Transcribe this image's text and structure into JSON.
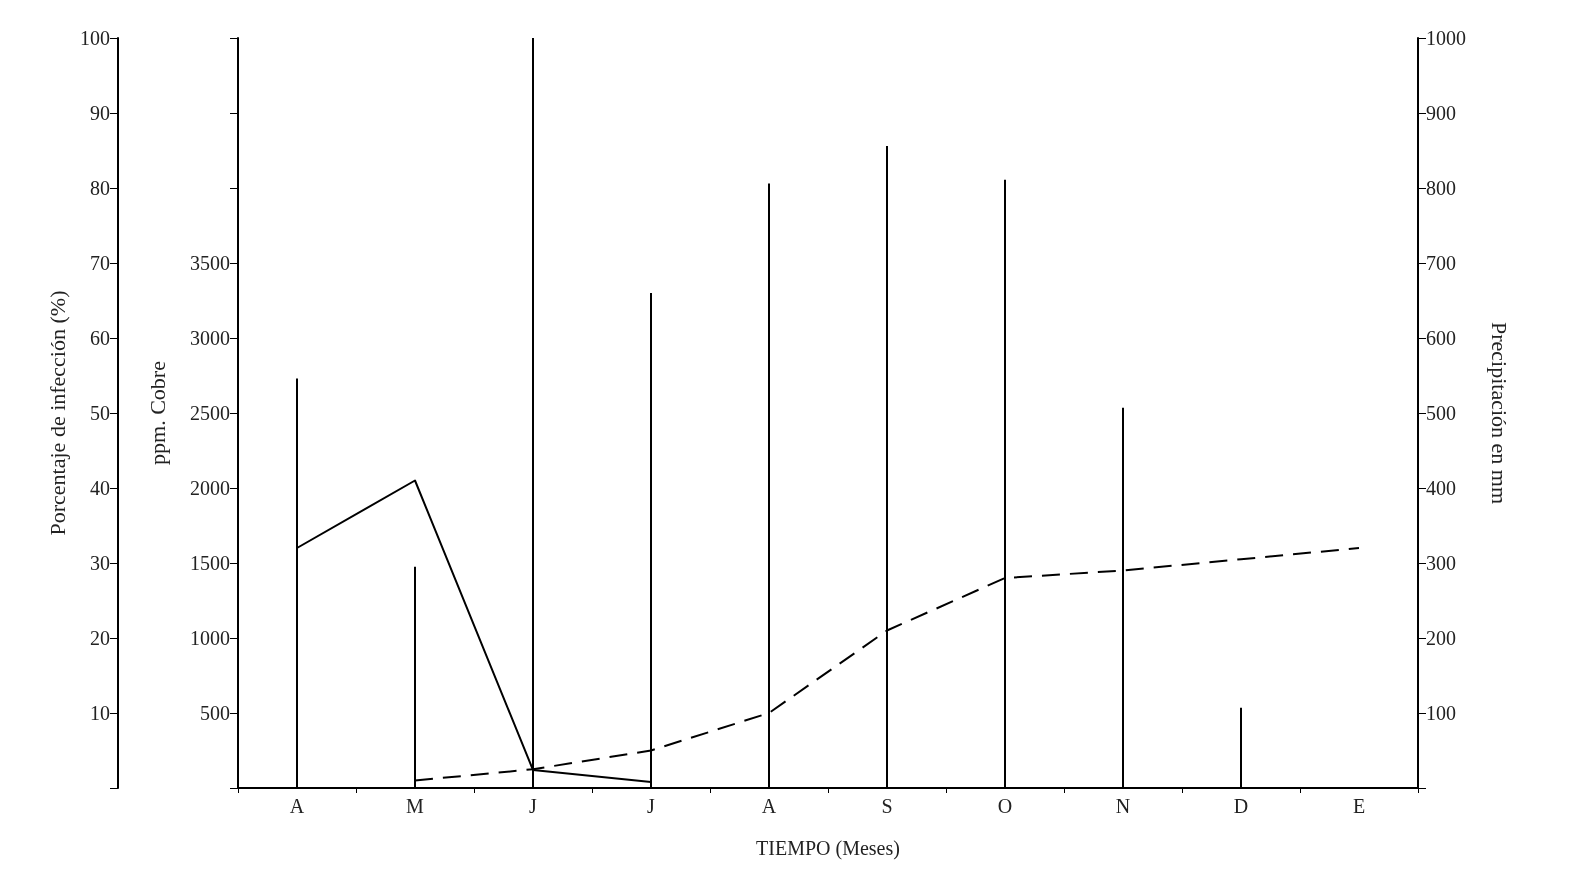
{
  "chart_data": {
    "type": "line",
    "xlabel": "TIEMPO (Meses)",
    "ylabel": "ppm. Cobre",
    "y2label": "Precipitación en mm",
    "y3label": "Porcentaje de infección (%)",
    "categories": [
      "A",
      "M",
      "J",
      "J",
      "A",
      "S",
      "O",
      "N",
      "D",
      "E"
    ],
    "ylim": [
      0,
      5000
    ],
    "yticks": [
      {
        "value": 0,
        "label": null
      },
      500,
      1000,
      1500,
      2000,
      2500,
      3000,
      3500,
      {
        "value": 4000,
        "label": null
      },
      {
        "value": 4500,
        "label": null
      },
      {
        "value": 5000,
        "label": null
      }
    ],
    "y2lim": [
      0,
      1000
    ],
    "y2ticks": [
      {
        "value": 0,
        "label": null
      },
      100,
      200,
      300,
      400,
      500,
      600,
      700,
      800,
      900,
      1000
    ],
    "y3lim": [
      0,
      100
    ],
    "y3ticks": [
      {
        "value": 0,
        "label": null
      },
      10,
      20,
      30,
      40,
      50,
      60,
      70,
      80,
      90,
      100
    ],
    "marker": "none",
    "series": [
      {
        "type": "bar",
        "axis": "y2",
        "color": "#000000",
        "values": [
          546,
          295,
          1000,
          660,
          806,
          856,
          811,
          507,
          107,
          null
        ]
      },
      {
        "axis": "y",
        "color": "#000000",
        "line_style": "solid",
        "values": [
          1600,
          2050,
          120,
          40,
          null,
          null,
          null,
          null,
          null,
          null
        ]
      },
      {
        "axis": "y3",
        "color": "#000000",
        "line_style": "dashed",
        "values": [
          null,
          1,
          2.5,
          5,
          10,
          21,
          28,
          29,
          30.5,
          32
        ]
      }
    ]
  }
}
